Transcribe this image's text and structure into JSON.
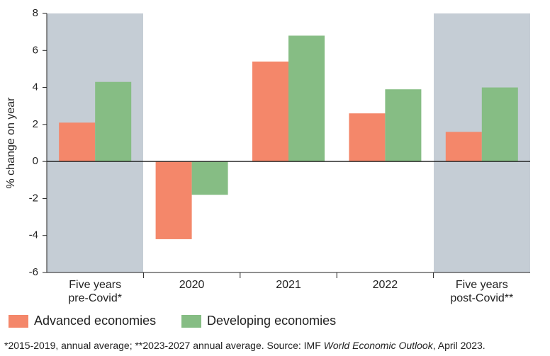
{
  "chart_data": {
    "type": "bar",
    "y_label": "% change on year",
    "categories": [
      "Five years\npre-Covid*",
      "2020",
      "2021",
      "2022",
      "Five years\npost-Covid**"
    ],
    "series": [
      {
        "name": "Advanced economies",
        "color": "#f4876a",
        "values": [
          2.1,
          -4.2,
          5.4,
          2.6,
          1.6
        ]
      },
      {
        "name": "Developing economies",
        "color": "#86bd84",
        "values": [
          4.3,
          -1.8,
          6.8,
          3.9,
          4.0
        ]
      }
    ],
    "ylim": [
      -6,
      8
    ],
    "yticks": [
      -6,
      -4,
      -2,
      0,
      2,
      4,
      6,
      8
    ],
    "footnote": {
      "before": "*2015-2019, annual average; **2023-2027 annual average. Source: IMF ",
      "italic": "World Economic Outlook",
      "after": ", April 2023."
    }
  }
}
